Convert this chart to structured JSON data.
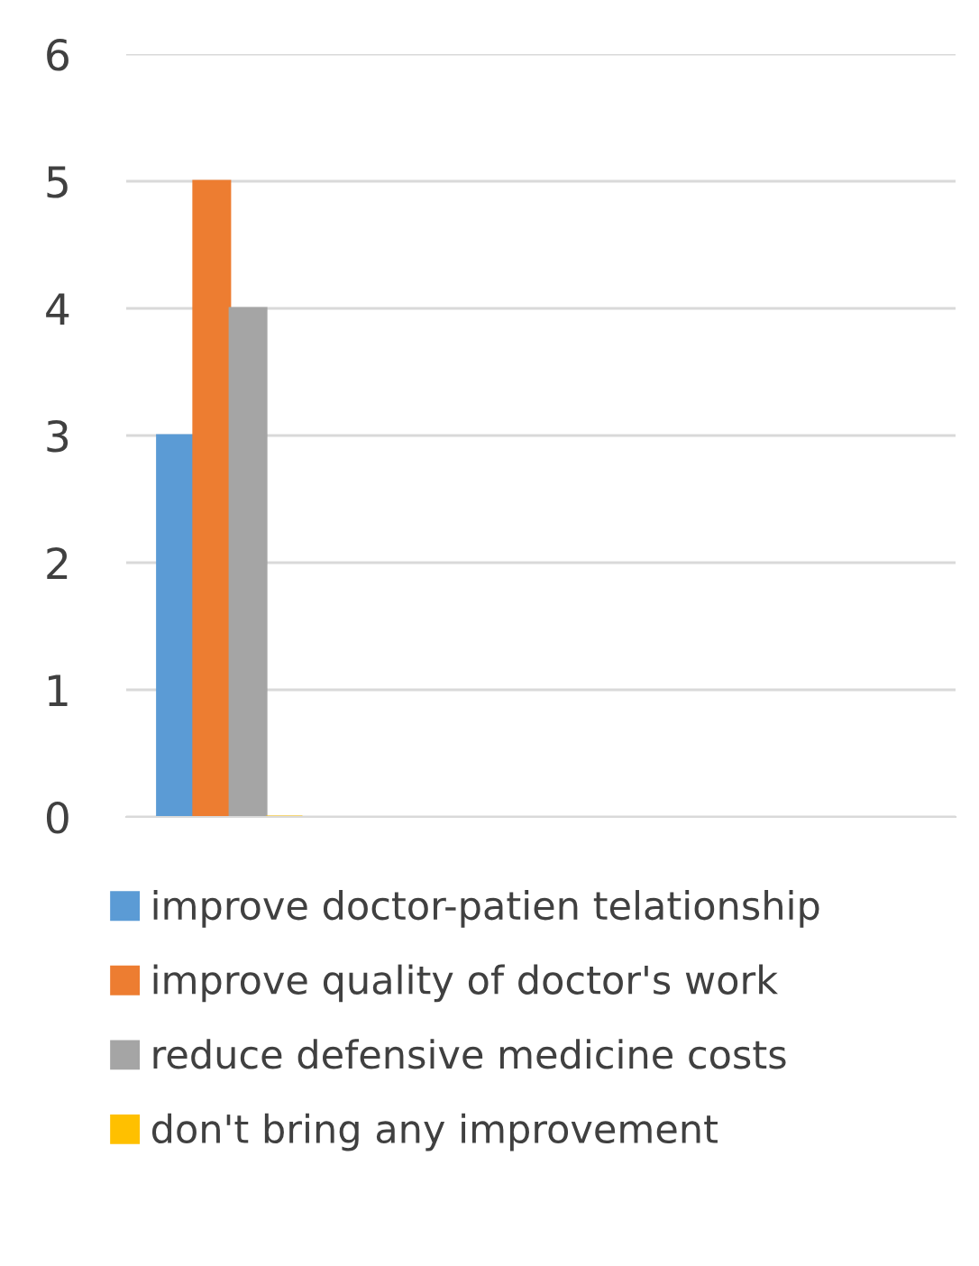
{
  "chart_data": {
    "type": "bar",
    "categories": [
      null,
      null,
      null,
      null
    ],
    "series": [
      {
        "name": "improve doctor-patien telationship",
        "color": "#5b9bd5",
        "values": [
          3,
          null,
          null,
          null
        ]
      },
      {
        "name": "improve quality of doctor's work",
        "color": "#ed7d31",
        "values": [
          5,
          null,
          null,
          null
        ]
      },
      {
        "name": "reduce defensive medicine costs",
        "color": "#a5a5a5",
        "values": [
          4,
          null,
          null,
          null
        ]
      },
      {
        "name": "don't bring any improvement",
        "color": "#ffc000",
        "values": [
          0,
          null,
          null,
          null
        ]
      }
    ],
    "ylim": [
      0,
      6
    ],
    "yticks": [
      0,
      1,
      2,
      3,
      4,
      5,
      6
    ],
    "grid": "y",
    "legend": "bottom"
  }
}
